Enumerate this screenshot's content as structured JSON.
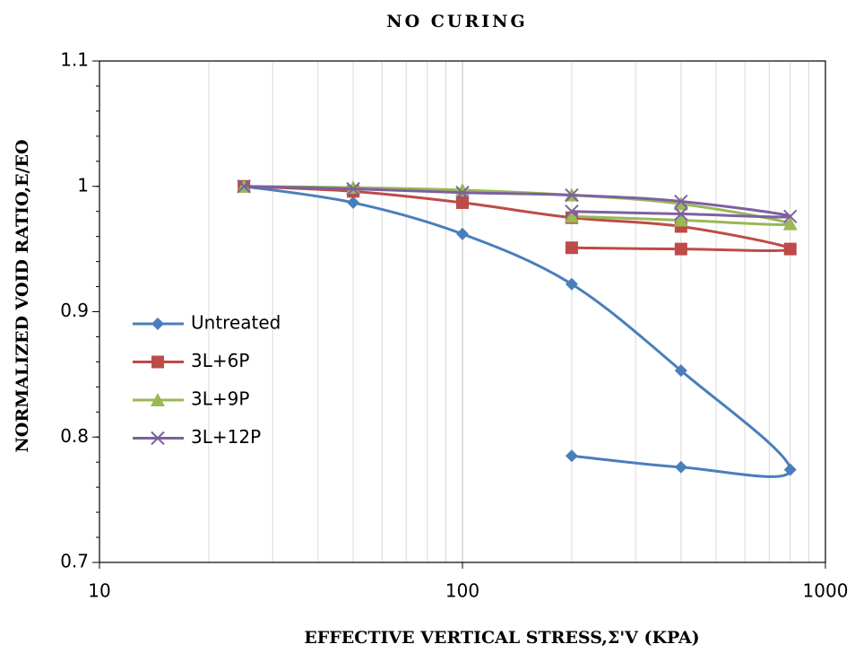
{
  "chart_data": {
    "type": "line",
    "title": "NO CURING",
    "x_label": "EFFECTIVE VERTICAL STRESS,Σ'V (KPA)",
    "y_label": "NORMALIZED VOID RATIO,E/EO",
    "x": [
      25,
      50,
      100,
      200,
      400,
      800,
      400,
      200
    ],
    "series": [
      {
        "name": "Untreated",
        "color": "#4a7ebb",
        "marker": "diamond",
        "values": [
          1.0,
          0.987,
          0.962,
          0.922,
          0.853,
          0.774,
          0.776,
          0.785
        ]
      },
      {
        "name": "3L+6P",
        "color": "#be4b48",
        "marker": "square",
        "values": [
          1.0,
          0.996,
          0.987,
          0.975,
          0.968,
          0.95,
          0.95,
          0.951
        ]
      },
      {
        "name": "3L+9P",
        "color": "#98b954",
        "marker": "triangle",
        "values": [
          1.0,
          0.999,
          0.997,
          0.993,
          0.986,
          0.97,
          0.973,
          0.976
        ]
      },
      {
        "name": "3L+12P",
        "color": "#7d60a0",
        "marker": "x",
        "values": [
          1.0,
          0.998,
          0.995,
          0.993,
          0.988,
          0.976,
          0.978,
          0.98
        ]
      }
    ],
    "xlim": [
      10,
      1000
    ],
    "xticks": [
      10,
      100,
      1000
    ],
    "xscale": "log",
    "ylim": [
      0.7,
      1.1
    ],
    "yticks": [
      0.7,
      0.8,
      0.9,
      1,
      1.1
    ],
    "grid": true,
    "smooth": true,
    "legend": "left"
  }
}
